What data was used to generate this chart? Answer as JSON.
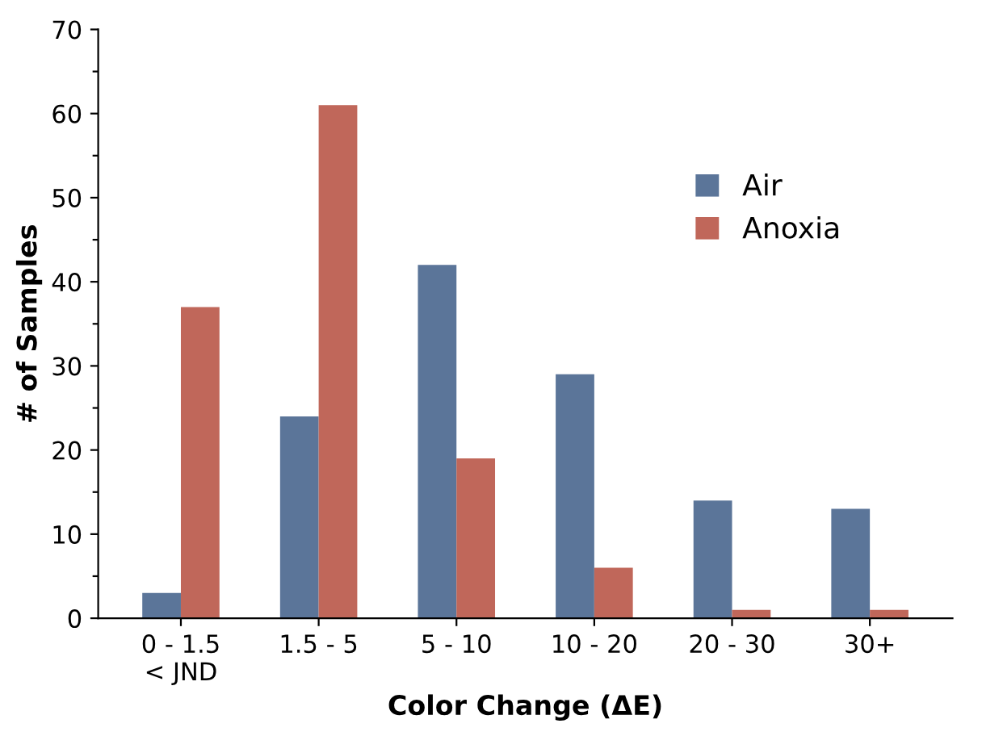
{
  "chart_data": {
    "type": "bar",
    "xlabel": "Color Change (ΔE)",
    "ylabel": "# of Samples",
    "categories": [
      "0 - 1.5\n< JND",
      "1.5 - 5",
      "5 - 10",
      "10 - 20",
      "20 - 30",
      "30+"
    ],
    "series": [
      {
        "name": "Air",
        "color": "#5b7599",
        "values": [
          3,
          24,
          42,
          29,
          14,
          13
        ]
      },
      {
        "name": "Anoxia",
        "color": "#c0675a",
        "values": [
          37,
          61,
          19,
          6,
          1,
          1
        ]
      }
    ],
    "ylim": [
      0,
      70
    ],
    "yticks": [
      0,
      {
        "value": 5,
        "label": null
      },
      10,
      {
        "value": 15,
        "label": null
      },
      20,
      {
        "value": 25,
        "label": null
      },
      30,
      {
        "value": 35,
        "label": null
      },
      40,
      {
        "value": 45,
        "label": null
      },
      50,
      {
        "value": 55,
        "label": null
      },
      60,
      {
        "value": 65,
        "label": null
      },
      70
    ],
    "grid": false,
    "legend": "top right"
  }
}
